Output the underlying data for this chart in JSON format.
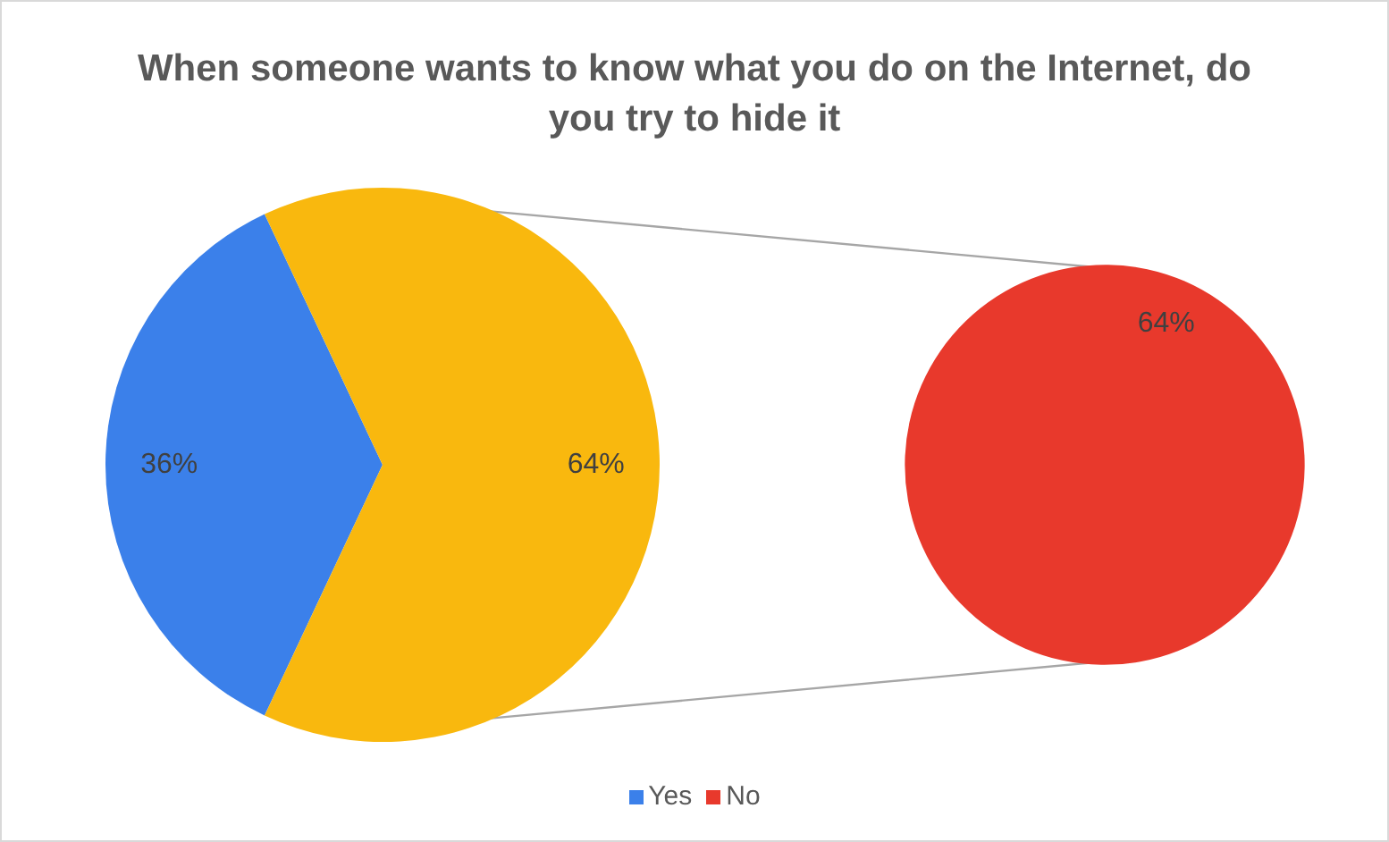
{
  "chart_data": [
    {
      "type": "pie",
      "title": "When someone wants to know what you do on the Internet, do you try to hide it",
      "categories": [
        "Yes",
        null
      ],
      "values": [
        36,
        64
      ],
      "colors": [
        "#3b80ea",
        "#f9b80e"
      ],
      "value_labels": [
        "36%",
        "64%"
      ],
      "legend": "bottom"
    },
    {
      "type": "pie",
      "categories": [
        "No"
      ],
      "values": [
        64
      ],
      "colors": [
        "#e8392c"
      ],
      "value_labels": [
        "64%"
      ],
      "legend": "bottom"
    }
  ]
}
